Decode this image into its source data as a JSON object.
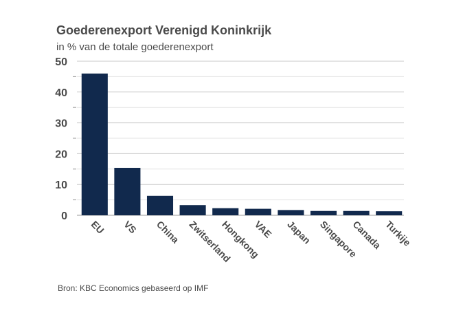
{
  "chart_data": {
    "type": "bar",
    "title": "Goederenexport Verenigd Koninkrijk",
    "subtitle": "in % van de totale goederenexport",
    "categories": [
      "EU",
      "VS",
      "China",
      "Zwitserland",
      "Hongkong",
      "VAE",
      "Japan",
      "Singapore",
      "Canada",
      "Turkije"
    ],
    "values": [
      46,
      15.4,
      6.3,
      3.3,
      2.3,
      2.1,
      1.7,
      1.4,
      1.4,
      1.3
    ],
    "ylim": [
      0,
      50
    ],
    "yticks": [
      0,
      10,
      20,
      30,
      40,
      50
    ],
    "grid": true,
    "bar_color": "#11294d",
    "source": "Bron: KBC Economics gebaseerd op IMF"
  }
}
